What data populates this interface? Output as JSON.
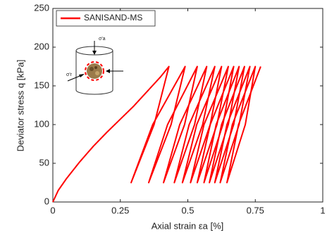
{
  "chart_data": {
    "type": "line",
    "xlabel": "Axial strain εa [%]",
    "ylabel": "Deviator stress q [kPa]",
    "xlim": [
      0,
      1
    ],
    "xticks": [
      0,
      0.25,
      0.5,
      0.75,
      1
    ],
    "ylim": [
      0,
      250
    ],
    "yticks": [
      0,
      50,
      100,
      150,
      200,
      250
    ],
    "legend": "upper left",
    "annotations": [
      "σ'a",
      "σ'r"
    ],
    "series": [
      {
        "name": "SANISAND-MS",
        "color": "#ff0000",
        "x": [
          0,
          0.02,
          0.05,
          0.1,
          0.15,
          0.2,
          0.25,
          0.3,
          0.35,
          0.4,
          0.43,
          0.375,
          0.29,
          0.37,
          0.49,
          0.438,
          0.355,
          0.425,
          0.535,
          0.488,
          0.41,
          0.47,
          0.57,
          0.525,
          0.45,
          0.505,
          0.6,
          0.555,
          0.48,
          0.533,
          0.625,
          0.583,
          0.51,
          0.56,
          0.65,
          0.608,
          0.535,
          0.583,
          0.67,
          0.63,
          0.56,
          0.605,
          0.69,
          0.65,
          0.58,
          0.625,
          0.71,
          0.67,
          0.6,
          0.645,
          0.73,
          0.69,
          0.62,
          0.665,
          0.75,
          0.713,
          0.645,
          0.688,
          0.77
        ],
        "y": [
          0,
          15,
          30,
          52,
          72,
          90,
          107,
          124,
          143,
          162,
          175,
          100,
          25,
          100,
          175,
          100,
          25,
          100,
          175,
          100,
          25,
          100,
          175,
          100,
          25,
          100,
          175,
          100,
          25,
          100,
          175,
          100,
          25,
          100,
          175,
          100,
          25,
          100,
          175,
          100,
          25,
          100,
          175,
          100,
          25,
          100,
          175,
          100,
          25,
          100,
          175,
          100,
          25,
          100,
          175,
          100,
          25,
          100,
          175
        ]
      }
    ]
  }
}
